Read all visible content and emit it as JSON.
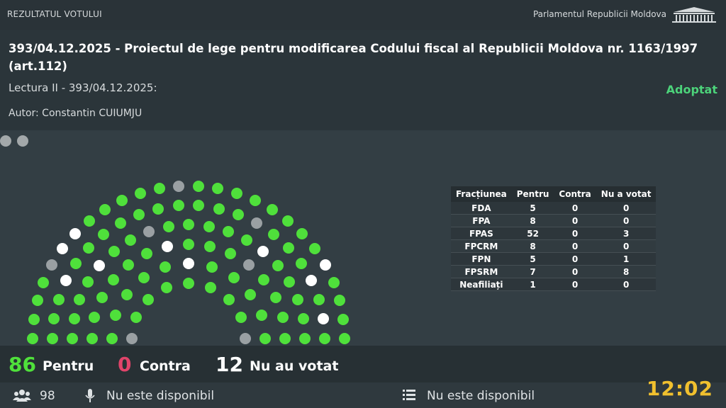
{
  "topbar": {
    "section_title": "REZULTATUL VOTULUI",
    "institution": "Parlamentul Republicii Moldova"
  },
  "draft": {
    "title": "393/04.12.2025 - Proiectul de lege pentru modificarea Codului fiscal al Republicii Moldova nr. 1163/1997 (art.112)",
    "reading": "Lectura II - 393/04.12.2025:",
    "author": "Autor: Constantin CUIUMJU",
    "status": "Adoptat"
  },
  "colors": {
    "pentru": "#4fe03b",
    "contra": "#e0446a",
    "absent": "#ffffff",
    "no_seat": "#9aa0a3",
    "status": "#4cd37a",
    "clock": "#f0c02e"
  },
  "factions": {
    "headers": [
      "Fracțiunea",
      "Pentru",
      "Contra",
      "Nu a votat"
    ],
    "rows": [
      [
        "FDA",
        "5",
        "0",
        "0"
      ],
      [
        "FPA",
        "8",
        "0",
        "0"
      ],
      [
        "FPAS",
        "52",
        "0",
        "3"
      ],
      [
        "FPCRM",
        "8",
        "0",
        "0"
      ],
      [
        "FPN",
        "5",
        "0",
        "1"
      ],
      [
        "FPSRM",
        "7",
        "0",
        "8"
      ],
      [
        "Neafiliați",
        "1",
        "0",
        "0"
      ]
    ]
  },
  "totals": {
    "pentru_count": "86",
    "pentru_label": "Pentru",
    "contra_count": "0",
    "contra_label": "Contra",
    "absent_count": "12",
    "absent_label": "Nu au votat"
  },
  "footer": {
    "members_icon": "people-icon",
    "members_count": "98",
    "mic_icon": "microphone-icon",
    "speaker": "Nu este disponibil",
    "list_icon": "list-icon",
    "agenda": "Nu este disponibil",
    "clock": "12:02"
  }
}
